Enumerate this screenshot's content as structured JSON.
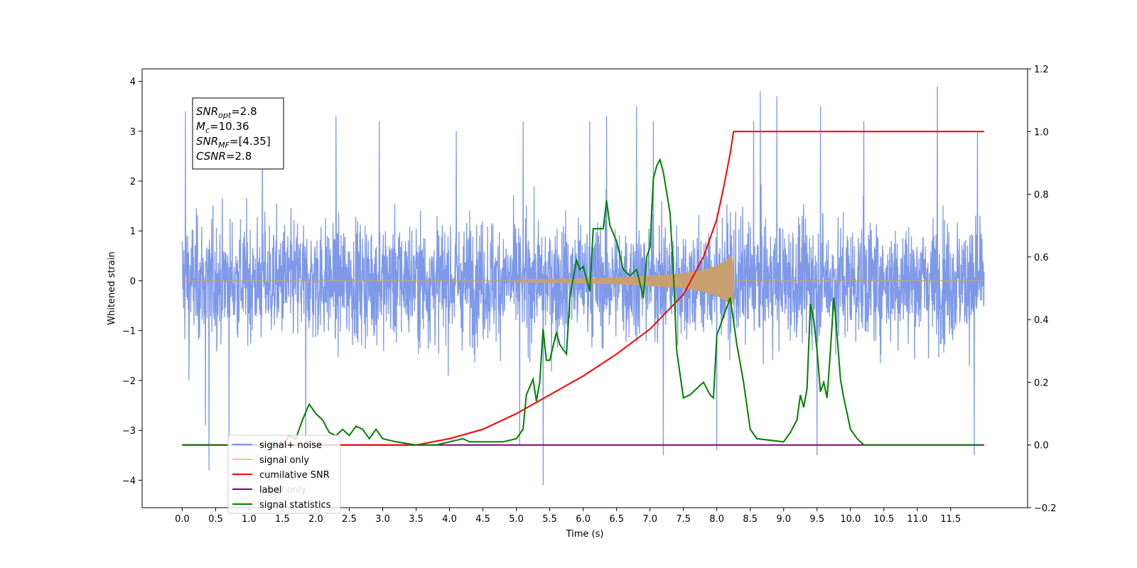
{
  "chart_data": {
    "type": "line",
    "xlabel": "Time (s)",
    "ylabel": "Whitened strain",
    "xlim": [
      -0.6,
      12.65
    ],
    "ylim": [
      -4.55,
      4.25
    ],
    "y2lim": [
      -0.2,
      1.2
    ],
    "x_ticks": [
      0.0,
      0.5,
      1.0,
      1.5,
      2.0,
      2.5,
      3.0,
      3.5,
      4.0,
      4.5,
      5.0,
      5.5,
      6.0,
      6.5,
      7.0,
      7.5,
      8.0,
      8.5,
      9.0,
      9.5,
      10.0,
      10.5,
      11.0,
      11.5
    ],
    "x_tick_labels": [
      "0.0",
      "0.5",
      "1.0",
      "1.5",
      "2.0",
      "2.5",
      "3.0",
      "3.5",
      "4.0",
      "4.5",
      "5.0",
      "5.5",
      "6.0",
      "6.5",
      "7.0",
      "7.5",
      "8.0",
      "8.5",
      "9.0",
      "9.5",
      "10.0",
      "10.5",
      "11.0",
      "11.5"
    ],
    "y_ticks": [
      -4,
      -3,
      -2,
      -1,
      0,
      1,
      2,
      3,
      4
    ],
    "y_tick_labels": [
      "−4",
      "−3",
      "−2",
      "−1",
      "0",
      "1",
      "2",
      "3",
      "4"
    ],
    "y2_ticks": [
      -0.2,
      0.0,
      0.2,
      0.4,
      0.6,
      0.8,
      1.0,
      1.2
    ],
    "y2_tick_labels": [
      "−0.2",
      "0.0",
      "0.2",
      "0.4",
      "0.6",
      "0.8",
      "1.0",
      "1.2"
    ],
    "annotation": [
      {
        "base": "SNR",
        "sub": "opt",
        "rest": "=2.8"
      },
      {
        "base": "M",
        "sub": "c",
        "rest": "=10.36"
      },
      {
        "base": "SNR",
        "sub": "MF",
        "rest": "=[4.35]"
      },
      {
        "base": "CSNR",
        "sub": "",
        "rest": "=2.8"
      }
    ],
    "legend_position": "lower-left",
    "legend": [
      {
        "label": "signal+ noise",
        "color": "#7893e8"
      },
      {
        "label": "signal only",
        "color": "#ffc66b"
      },
      {
        "label": "cumilative SNR",
        "color": "#ff0000"
      },
      {
        "label": "label",
        "color": "#800080"
      },
      {
        "label": "signal statistics",
        "color": "#008000"
      }
    ],
    "hidden_legend_text": "label only",
    "series": [
      {
        "name": "signal+ noise",
        "axis": "left",
        "color": "#7893e8",
        "x_range": [
          0.0,
          12.0
        ],
        "envelope": [
          1.9,
          3.2
        ],
        "spikes": [
          [
            0.05,
            3.4
          ],
          [
            0.1,
            -2.0
          ],
          [
            0.35,
            -2.9
          ],
          [
            0.4,
            -3.8
          ],
          [
            0.7,
            -3.15
          ],
          [
            1.2,
            3.0
          ],
          [
            1.85,
            -3.4
          ],
          [
            2.3,
            3.3
          ],
          [
            2.95,
            3.2
          ],
          [
            4.1,
            3.0
          ],
          [
            5.05,
            -3.3
          ],
          [
            5.4,
            -4.1
          ],
          [
            5.1,
            3.2
          ],
          [
            6.1,
            3.2
          ],
          [
            6.35,
            3.3
          ],
          [
            6.8,
            3.5
          ],
          [
            7.05,
            3.2
          ],
          [
            7.2,
            -3.5
          ],
          [
            8.0,
            -3.4
          ],
          [
            8.55,
            3.2
          ],
          [
            8.65,
            3.8
          ],
          [
            8.9,
            3.7
          ],
          [
            9.5,
            -3.5
          ],
          [
            9.55,
            3.5
          ],
          [
            10.2,
            3.2
          ],
          [
            11.3,
            3.9
          ],
          [
            11.9,
            3.0
          ],
          [
            11.85,
            -3.5
          ]
        ]
      },
      {
        "name": "signal only",
        "axis": "left",
        "color": "#c8a070",
        "chirp_start": 5.0,
        "chirp_end": 8.25,
        "x": [
          5.0,
          6.0,
          6.5,
          7.0,
          7.5,
          7.8,
          8.0,
          8.15,
          8.22,
          8.25
        ],
        "amplitude": [
          0.03,
          0.05,
          0.07,
          0.1,
          0.15,
          0.22,
          0.3,
          0.42,
          0.52,
          0.3
        ]
      },
      {
        "name": "cumilative SNR",
        "axis": "right",
        "color": "#ff0000",
        "x": [
          0.0,
          3.5,
          4.0,
          4.5,
          5.0,
          5.5,
          6.0,
          6.5,
          7.0,
          7.5,
          7.8,
          8.0,
          8.1,
          8.2,
          8.25,
          12.0
        ],
        "values": [
          0.0,
          0.0,
          0.02,
          0.05,
          0.1,
          0.16,
          0.22,
          0.29,
          0.37,
          0.48,
          0.6,
          0.72,
          0.82,
          0.93,
          1.0,
          1.0
        ]
      },
      {
        "name": "label",
        "axis": "right",
        "color": "#800080",
        "x": [
          0.0,
          12.0
        ],
        "values": [
          0.0,
          0.0
        ]
      },
      {
        "name": "signal statistics",
        "axis": "right",
        "color": "#008000",
        "x": [
          0.0,
          1.5,
          1.6,
          1.7,
          1.75,
          1.8,
          1.9,
          2.0,
          2.1,
          2.2,
          2.3,
          2.4,
          2.5,
          2.6,
          2.7,
          2.8,
          2.9,
          3.0,
          3.2,
          3.5,
          3.8,
          4.0,
          4.2,
          4.3,
          4.5,
          4.8,
          5.0,
          5.1,
          5.15,
          5.25,
          5.3,
          5.35,
          5.4,
          5.45,
          5.5,
          5.6,
          5.65,
          5.75,
          5.8,
          5.9,
          5.95,
          6.0,
          6.1,
          6.15,
          6.3,
          6.35,
          6.4,
          6.5,
          6.6,
          6.7,
          6.8,
          6.9,
          6.95,
          7.0,
          7.05,
          7.1,
          7.15,
          7.2,
          7.3,
          7.35,
          7.4,
          7.5,
          7.6,
          7.7,
          7.8,
          7.9,
          7.95,
          8.0,
          8.1,
          8.2,
          8.3,
          8.4,
          8.5,
          8.6,
          9.0,
          9.1,
          9.2,
          9.25,
          9.3,
          9.35,
          9.4,
          9.45,
          9.5,
          9.55,
          9.6,
          9.65,
          9.7,
          9.75,
          9.8,
          9.85,
          9.9,
          10.0,
          10.1,
          10.2,
          10.3,
          10.4,
          11.0,
          11.95
        ],
        "values": [
          0.0,
          0.0,
          0.03,
          0.02,
          0.05,
          0.08,
          0.13,
          0.1,
          0.08,
          0.04,
          0.03,
          0.05,
          0.03,
          0.06,
          0.05,
          0.02,
          0.05,
          0.02,
          0.01,
          0.0,
          0.0,
          0.01,
          0.02,
          0.01,
          0.01,
          0.01,
          0.02,
          0.05,
          0.16,
          0.21,
          0.14,
          0.2,
          0.37,
          0.27,
          0.27,
          0.36,
          0.32,
          0.29,
          0.47,
          0.59,
          0.56,
          0.57,
          0.49,
          0.69,
          0.69,
          0.78,
          0.7,
          0.65,
          0.56,
          0.54,
          0.56,
          0.47,
          0.6,
          0.63,
          0.85,
          0.89,
          0.91,
          0.87,
          0.74,
          0.55,
          0.3,
          0.15,
          0.16,
          0.18,
          0.2,
          0.16,
          0.15,
          0.35,
          0.41,
          0.47,
          0.32,
          0.2,
          0.05,
          0.02,
          0.01,
          0.04,
          0.08,
          0.16,
          0.12,
          0.18,
          0.45,
          0.4,
          0.3,
          0.17,
          0.2,
          0.15,
          0.3,
          0.47,
          0.35,
          0.21,
          0.15,
          0.05,
          0.02,
          0.0,
          0.0,
          0.0,
          0.0,
          0.0
        ]
      }
    ]
  }
}
